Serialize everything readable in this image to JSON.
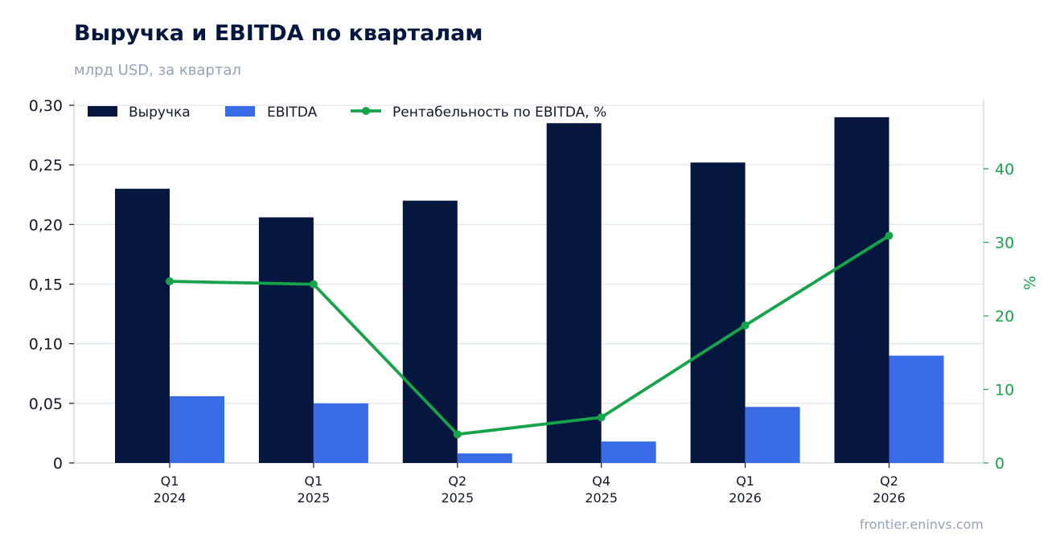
{
  "header": {
    "title": "Выручка и EBITDA по кварталам",
    "subtitle": "млрд USD, за квартал"
  },
  "footer": {
    "source": "frontier.eninvs.com"
  },
  "colors": {
    "revenue": "#06173f",
    "ebitda": "#3a6be6",
    "margin": "#16a34a",
    "grid": "#e2e8f0",
    "axis": "#cbd5e1"
  },
  "chart_data": {
    "type": "bar",
    "categories": [
      [
        "Q1",
        "2024"
      ],
      [
        "Q1",
        "2025"
      ],
      [
        "Q2",
        "2025"
      ],
      [
        "Q4",
        "2025"
      ],
      [
        "Q1",
        "2026"
      ],
      [
        "Q2",
        "2026"
      ]
    ],
    "series": [
      {
        "name": "Выручка",
        "type": "bar",
        "axis": "left",
        "values": [
          0.23,
          0.206,
          0.22,
          0.285,
          0.252,
          0.29
        ]
      },
      {
        "name": "EBITDA",
        "type": "bar",
        "axis": "left",
        "values": [
          0.056,
          0.05,
          0.008,
          0.018,
          0.047,
          0.09
        ]
      },
      {
        "name": "Рентабельность по EBITDA, %",
        "type": "line",
        "axis": "right",
        "values": [
          24.7,
          24.3,
          3.9,
          6.2,
          18.7,
          30.9
        ]
      }
    ],
    "y_axis_left": {
      "range": [
        0,
        0.3
      ],
      "ticks": [
        0,
        0.05,
        0.1,
        0.15,
        0.2,
        0.25,
        0.3
      ],
      "tick_labels": [
        "0",
        "0,05",
        "0,10",
        "0,15",
        "0,20",
        "0,25",
        "0,30"
      ]
    },
    "y_axis_right": {
      "label": "%",
      "range": [
        0,
        48.5
      ],
      "ticks": [
        0,
        10,
        20,
        30,
        40
      ],
      "tick_labels": [
        "0",
        "10",
        "20",
        "30",
        "40"
      ]
    },
    "grid": true,
    "legend": "top-left"
  }
}
